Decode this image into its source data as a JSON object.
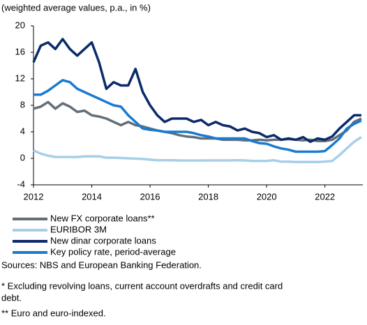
{
  "chart_data": {
    "type": "line",
    "title": "(weighted average values, p.a., in %)",
    "x": [
      2012,
      2012.25,
      2012.5,
      2012.75,
      2013,
      2013.25,
      2013.5,
      2013.75,
      2014,
      2014.25,
      2014.5,
      2014.75,
      2015,
      2015.25,
      2015.5,
      2015.75,
      2016,
      2016.25,
      2016.5,
      2016.75,
      2017,
      2017.25,
      2017.5,
      2017.75,
      2018,
      2018.25,
      2018.5,
      2018.75,
      2019,
      2019.25,
      2019.5,
      2019.75,
      2020,
      2020.25,
      2020.5,
      2020.75,
      2021,
      2021.25,
      2021.5,
      2021.75,
      2022,
      2022.25,
      2022.5,
      2022.75,
      2023,
      2023.25
    ],
    "series": [
      {
        "name": "New FX corporate loans**",
        "color": "#646e78",
        "values": [
          7.5,
          7.8,
          8.5,
          7.5,
          8.3,
          7.8,
          7.0,
          7.2,
          6.5,
          6.3,
          6.0,
          5.5,
          5.0,
          5.5,
          5.0,
          4.8,
          4.5,
          4.2,
          4.0,
          3.8,
          3.5,
          3.3,
          3.2,
          3.0,
          3.0,
          3.0,
          2.8,
          2.8,
          2.8,
          2.7,
          2.7,
          2.8,
          2.7,
          2.8,
          2.8,
          2.9,
          2.8,
          2.7,
          2.8,
          2.6,
          2.6,
          2.8,
          3.5,
          4.2,
          5.5,
          6.0
        ]
      },
      {
        "name": "EURIBOR 3M",
        "color": "#a6cfe9",
        "values": [
          1.2,
          0.7,
          0.4,
          0.2,
          0.2,
          0.2,
          0.2,
          0.3,
          0.3,
          0.3,
          0.1,
          0.1,
          0.05,
          0,
          -0.05,
          -0.1,
          -0.2,
          -0.3,
          -0.3,
          -0.3,
          -0.33,
          -0.33,
          -0.33,
          -0.33,
          -0.32,
          -0.32,
          -0.32,
          -0.32,
          -0.3,
          -0.32,
          -0.4,
          -0.4,
          -0.4,
          -0.3,
          -0.5,
          -0.5,
          -0.55,
          -0.55,
          -0.55,
          -0.55,
          -0.5,
          -0.4,
          0.5,
          1.5,
          2.5,
          3.2
        ]
      },
      {
        "name": "New dinar corporate loans",
        "color": "#0a2a6a",
        "values": [
          14.5,
          17,
          17.5,
          16.5,
          18,
          16.5,
          15.5,
          16.5,
          17.5,
          14.5,
          10.5,
          11.5,
          11,
          11,
          13.5,
          10,
          8,
          6.5,
          5.5,
          6,
          6,
          6,
          5.5,
          5.8,
          5,
          5.5,
          5.0,
          4.8,
          4.2,
          4.5,
          4.0,
          3.8,
          3.2,
          3.5,
          2.8,
          3.0,
          2.8,
          3.2,
          2.5,
          3.0,
          2.8,
          3.3,
          4.5,
          5.5,
          6.5,
          6.5
        ]
      },
      {
        "name": "Key policy rate, period-average",
        "color": "#1a7ad0",
        "values": [
          9.6,
          9.6,
          10.2,
          11,
          11.8,
          11.5,
          10.5,
          10,
          9.5,
          9,
          8.5,
          8.0,
          7.8,
          6.5,
          5.5,
          4.5,
          4.3,
          4.2,
          4.0,
          4.0,
          4.0,
          4.0,
          3.8,
          3.5,
          3.3,
          3.0,
          3.0,
          3.0,
          3.0,
          3.0,
          2.6,
          2.3,
          2.2,
          1.8,
          1.5,
          1.3,
          1.0,
          1.0,
          1.0,
          1.0,
          1.1,
          2.0,
          3.0,
          4.5,
          5.2,
          5.7
        ]
      }
    ],
    "xlim": [
      2012,
      2023.3
    ],
    "xticks": [
      2012,
      2014,
      2016,
      2018,
      2020,
      2022
    ],
    "ylim": [
      -4,
      20
    ],
    "yticks": [
      -4,
      0,
      4,
      8,
      12,
      16,
      20
    ],
    "notes": [
      "Sources: NBS and European Banking Federation.",
      "* Excluding revolving loans, current account overdrafts and credit card",
      "debt.",
      "** Euro and euro-indexed."
    ]
  }
}
